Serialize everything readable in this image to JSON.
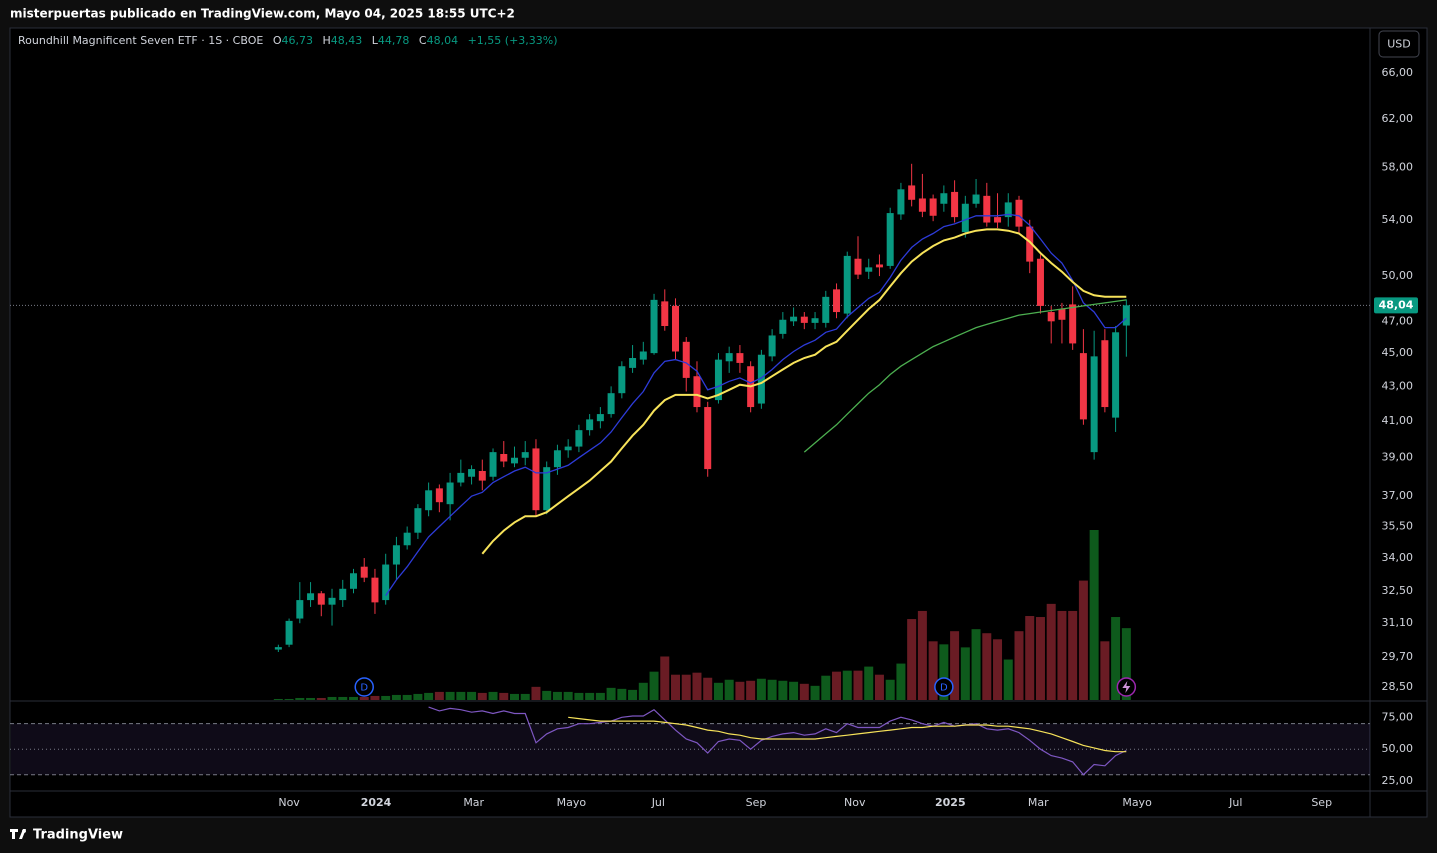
{
  "header": "misterpuertas publicado en TradingView.com, Mayo 04, 2025 18:55 UTC+2",
  "footer": "TradingView",
  "currency_button": "USD",
  "chart_data": {
    "type": "candlestick",
    "legend": {
      "title": "Roundhill Magnificent Seven ETF · 1S · CBOE",
      "ohlc": [
        {
          "key": "O",
          "value": 46.73,
          "label": "46,73"
        },
        {
          "key": "H",
          "value": 48.43,
          "label": "48,43"
        },
        {
          "key": "L",
          "value": 44.78,
          "label": "44,78"
        },
        {
          "key": "C",
          "value": 48.04,
          "label": "48,04"
        }
      ],
      "change": "+1,55 (+3,33%)"
    },
    "log_scale": true,
    "ylim": [
      28,
      70.2
    ],
    "yticks": [
      {
        "value": 66,
        "label": "66,00"
      },
      {
        "value": 62,
        "label": "62,00"
      },
      {
        "value": 58,
        "label": "58,00"
      },
      {
        "value": 54,
        "label": "54,00"
      },
      {
        "value": 50,
        "label": "50,00"
      },
      {
        "value": 47,
        "label": "47,00"
      },
      {
        "value": 45,
        "label": "45,00"
      },
      {
        "value": 43,
        "label": "43,00"
      },
      {
        "value": 41,
        "label": "41,00"
      },
      {
        "value": 39,
        "label": "39,00"
      },
      {
        "value": 37,
        "label": "37,00"
      },
      {
        "value": 35.5,
        "label": "35,50"
      },
      {
        "value": 34,
        "label": "34,00"
      },
      {
        "value": 32.5,
        "label": "32,50"
      },
      {
        "value": 31.1,
        "label": "31,10"
      },
      {
        "value": 29.7,
        "label": "29,70"
      },
      {
        "value": 28.5,
        "label": "28,50"
      }
    ],
    "xlim": [
      -25,
      101.7
    ],
    "xticks": [
      {
        "value": 1.0,
        "label": "Nov"
      },
      {
        "value": 9.1,
        "label": "2024"
      },
      {
        "value": 18.2,
        "label": "Mar"
      },
      {
        "value": 27.3,
        "label": "Mayo"
      },
      {
        "value": 35.4,
        "label": "Jul"
      },
      {
        "value": 44.5,
        "label": "Sep"
      },
      {
        "value": 53.7,
        "label": "Nov"
      },
      {
        "value": 62.6,
        "label": "2025"
      },
      {
        "value": 70.8,
        "label": "Mar"
      },
      {
        "value": 80.0,
        "label": "Mayo"
      },
      {
        "value": 89.2,
        "label": "Jul"
      },
      {
        "value": 97.2,
        "label": "Sep"
      }
    ],
    "up_color": "#089981",
    "down_color": "#f23645",
    "open": [
      30.0,
      30.2,
      31.3,
      32.1,
      32.4,
      31.9,
      32.1,
      32.6,
      33.6,
      33.1,
      32.1,
      33.7,
      34.6,
      35.2,
      36.3,
      37.4,
      36.6,
      37.7,
      38.0,
      38.3,
      38.0,
      39.2,
      38.7,
      39.0,
      39.5,
      36.3,
      38.5,
      39.4,
      39.6,
      40.5,
      41.0,
      41.4,
      42.6,
      44.1,
      44.6,
      45.0,
      48.3,
      48.0,
      45.7,
      43.6,
      41.8,
      42.2,
      44.5,
      45.0,
      44.2,
      42.0,
      44.8,
      46.2,
      47.0,
      47.3,
      46.9,
      46.9,
      49.1,
      47.5,
      51.2,
      50.3,
      50.8,
      50.7,
      54.4,
      56.6,
      55.6,
      55.6,
      55.2,
      56.1,
      53.1,
      55.2,
      55.8,
      54.2,
      54.2,
      55.5,
      53.5,
      51.2,
      47.6,
      47.8,
      48.1,
      45.0,
      39.3,
      45.8,
      41.2,
      46.73
    ],
    "high": [
      30.2,
      31.3,
      32.9,
      32.9,
      32.5,
      32.6,
      33.0,
      33.5,
      34.0,
      33.5,
      34.2,
      35.0,
      35.5,
      36.6,
      37.7,
      37.6,
      38.2,
      38.9,
      38.6,
      38.9,
      39.5,
      39.9,
      39.6,
      39.9,
      40.0,
      38.8,
      39.7,
      40.0,
      40.8,
      41.4,
      41.8,
      43.0,
      44.5,
      45.5,
      45.7,
      48.8,
      49.1,
      48.5,
      46.0,
      44.5,
      42.1,
      45.0,
      45.4,
      45.5,
      44.5,
      45.2,
      46.5,
      47.6,
      47.9,
      47.6,
      47.6,
      49.0,
      49.5,
      51.7,
      52.8,
      51.2,
      51.5,
      54.9,
      56.8,
      58.3,
      57.5,
      55.9,
      56.6,
      57.0,
      55.8,
      57.1,
      56.8,
      56.0,
      56.0,
      55.8,
      54.0,
      51.5,
      48.0,
      48.2,
      49.3,
      46.5,
      46.4,
      46.5,
      46.7,
      48.43
    ],
    "low": [
      29.9,
      30.1,
      31.1,
      31.8,
      31.4,
      31.0,
      31.8,
      32.4,
      32.9,
      31.5,
      31.9,
      33.0,
      34.4,
      34.9,
      36.0,
      36.2,
      35.8,
      37.5,
      37.6,
      37.3,
      37.8,
      38.5,
      38.5,
      38.6,
      36.0,
      36.1,
      38.1,
      39.0,
      39.3,
      40.2,
      40.6,
      41.2,
      42.3,
      43.8,
      44.3,
      44.9,
      46.4,
      44.6,
      42.7,
      41.5,
      38.0,
      42.0,
      43.8,
      43.8,
      41.5,
      41.7,
      44.5,
      45.9,
      46.7,
      46.5,
      46.5,
      46.6,
      47.2,
      47.2,
      49.8,
      49.8,
      50.0,
      50.5,
      54.0,
      55.0,
      54.2,
      53.9,
      54.6,
      53.8,
      52.7,
      54.9,
      53.5,
      53.4,
      53.5,
      53.0,
      50.2,
      47.5,
      45.6,
      45.6,
      45.2,
      40.8,
      38.9,
      41.5,
      40.4,
      44.78
    ],
    "close": [
      30.1,
      31.2,
      32.1,
      32.4,
      31.9,
      32.2,
      32.6,
      33.3,
      33.1,
      32.0,
      33.7,
      34.6,
      35.2,
      36.4,
      37.3,
      36.7,
      37.7,
      38.2,
      38.4,
      37.8,
      39.3,
      38.8,
      39.0,
      39.3,
      36.3,
      38.5,
      39.4,
      39.6,
      40.5,
      41.1,
      41.4,
      42.6,
      44.2,
      44.7,
      45.1,
      48.4,
      46.7,
      45.1,
      43.5,
      41.8,
      38.4,
      44.6,
      45.0,
      44.4,
      41.8,
      44.9,
      46.1,
      47.1,
      47.3,
      46.9,
      47.2,
      48.6,
      47.6,
      51.4,
      50.1,
      50.6,
      50.6,
      54.5,
      56.3,
      55.5,
      54.6,
      54.3,
      56.0,
      54.2,
      55.2,
      55.9,
      53.8,
      53.8,
      55.3,
      53.5,
      51.0,
      48.0,
      47.0,
      47.1,
      45.6,
      41.1,
      44.8,
      41.8,
      46.3,
      48.04
    ],
    "volume": [
      1,
      1,
      2,
      2,
      2,
      3,
      3,
      3,
      3,
      4,
      4,
      5,
      5,
      6,
      7,
      8,
      8,
      8,
      8,
      7,
      8,
      7,
      6,
      6,
      13,
      9,
      8,
      8,
      7,
      7,
      7,
      12,
      11,
      10,
      17,
      28,
      43,
      25,
      25,
      27,
      22,
      17,
      20,
      18,
      19,
      21,
      20,
      19,
      18,
      16,
      14,
      24,
      28,
      29,
      29,
      33,
      25,
      20,
      36,
      80,
      88,
      58,
      55,
      68,
      52,
      70,
      66,
      60,
      40,
      68,
      83,
      82,
      95,
      88,
      88,
      118,
      168,
      58,
      82,
      71
    ],
    "volume_up_color": "#0e5a1c",
    "volume_down_color": "#6a1c24",
    "lines": [
      {
        "color": "#2d3bd8",
        "values": [
          null,
          null,
          null,
          null,
          null,
          null,
          null,
          null,
          null,
          null,
          32.3,
          33.0,
          33.6,
          34.3,
          35.0,
          35.5,
          36.0,
          36.5,
          37.0,
          37.2,
          37.7,
          38.0,
          38.3,
          38.5,
          38.2,
          38.2,
          38.4,
          38.6,
          39.0,
          39.4,
          39.8,
          40.4,
          41.2,
          42.0,
          42.7,
          43.8,
          44.5,
          44.6,
          44.4,
          43.9,
          42.8,
          43.0,
          43.3,
          43.5,
          43.2,
          43.5,
          44.0,
          44.6,
          45.1,
          45.5,
          45.8,
          46.3,
          46.5,
          47.3,
          47.9,
          48.5,
          48.9,
          49.9,
          51.1,
          52.0,
          52.6,
          53.0,
          53.5,
          53.7,
          54.0,
          54.3,
          54.3,
          54.3,
          54.4,
          54.3,
          53.6,
          52.6,
          51.6,
          50.9,
          49.7,
          48.2,
          47.6,
          46.6,
          46.6,
          47.2
        ]
      },
      {
        "color": "#f7e35a",
        "values": [
          null,
          null,
          null,
          null,
          null,
          null,
          null,
          null,
          null,
          null,
          null,
          null,
          null,
          null,
          null,
          null,
          null,
          null,
          null,
          34.2,
          34.8,
          35.3,
          35.7,
          36.0,
          36.0,
          36.2,
          36.6,
          37.0,
          37.4,
          37.8,
          38.3,
          38.8,
          39.5,
          40.2,
          40.8,
          41.6,
          42.2,
          42.5,
          42.5,
          42.5,
          42.3,
          42.5,
          42.8,
          43.1,
          43.0,
          43.2,
          43.6,
          44.0,
          44.4,
          44.7,
          44.9,
          45.4,
          45.7,
          46.4,
          47.1,
          47.8,
          48.4,
          49.3,
          50.2,
          51.0,
          51.6,
          52.1,
          52.5,
          52.7,
          53.0,
          53.2,
          53.3,
          53.3,
          53.2,
          53.0,
          52.4,
          51.6,
          50.9,
          50.3,
          49.6,
          49.0,
          48.7,
          48.6,
          48.6,
          48.6
        ]
      },
      {
        "color": "#4caf50",
        "values": [
          null,
          null,
          null,
          null,
          null,
          null,
          null,
          null,
          null,
          null,
          null,
          null,
          null,
          null,
          null,
          null,
          null,
          null,
          null,
          null,
          null,
          null,
          null,
          null,
          null,
          null,
          null,
          null,
          null,
          null,
          null,
          null,
          null,
          null,
          null,
          null,
          null,
          null,
          null,
          null,
          null,
          null,
          null,
          null,
          null,
          null,
          null,
          null,
          null,
          39.3,
          39.8,
          40.3,
          40.8,
          41.4,
          42.0,
          42.6,
          43.1,
          43.7,
          44.2,
          44.6,
          45.0,
          45.4,
          45.7,
          46.0,
          46.3,
          46.6,
          46.8,
          47.0,
          47.2,
          47.4,
          47.5,
          47.6,
          47.7,
          47.8,
          47.9,
          48.0,
          48.1,
          48.2,
          48.3,
          48.4
        ]
      }
    ],
    "last_price": {
      "value": 48.04,
      "label": "48,04"
    },
    "events": [
      {
        "index": 8,
        "label": "D"
      },
      {
        "index": 62,
        "label": "D"
      },
      {
        "index": 79
      }
    ],
    "rsi": {
      "ylim": [
        18,
        87
      ],
      "yticks": [
        {
          "value": 75,
          "label": "75,00"
        },
        {
          "value": 50,
          "label": "50,00"
        },
        {
          "value": 25,
          "label": "25,00"
        }
      ],
      "bands": [
        70,
        50,
        30
      ],
      "color": "#7e57c2",
      "ma_color": "#f7e35a",
      "values": [
        null,
        null,
        null,
        null,
        null,
        null,
        null,
        null,
        null,
        null,
        null,
        null,
        null,
        null,
        83,
        80,
        82,
        81,
        79,
        80,
        78,
        80,
        78,
        78,
        55,
        62,
        66,
        67,
        70,
        70,
        71,
        72,
        75,
        76,
        76,
        81,
        73,
        65,
        58,
        55,
        47,
        56,
        58,
        57,
        50,
        57,
        60,
        62,
        63,
        61,
        62,
        66,
        63,
        70,
        67,
        67,
        67,
        72,
        75,
        73,
        70,
        68,
        71,
        68,
        69,
        70,
        66,
        65,
        66,
        63,
        57,
        50,
        45,
        43,
        40,
        30,
        38,
        37,
        45,
        49
      ],
      "ma": [
        null,
        null,
        null,
        null,
        null,
        null,
        null,
        null,
        null,
        null,
        null,
        null,
        null,
        null,
        null,
        null,
        null,
        null,
        null,
        null,
        null,
        null,
        null,
        null,
        null,
        null,
        null,
        75,
        74,
        73,
        72,
        72,
        72,
        72,
        72,
        72,
        71,
        70,
        69,
        67,
        65,
        64,
        62,
        61,
        59,
        58,
        58,
        58,
        58,
        58,
        58,
        59,
        60,
        61,
        62,
        63,
        64,
        65,
        66,
        67,
        67,
        68,
        68,
        68,
        69,
        69,
        69,
        68,
        68,
        67,
        66,
        64,
        62,
        59,
        56,
        53,
        51,
        49,
        48,
        48
      ]
    }
  }
}
